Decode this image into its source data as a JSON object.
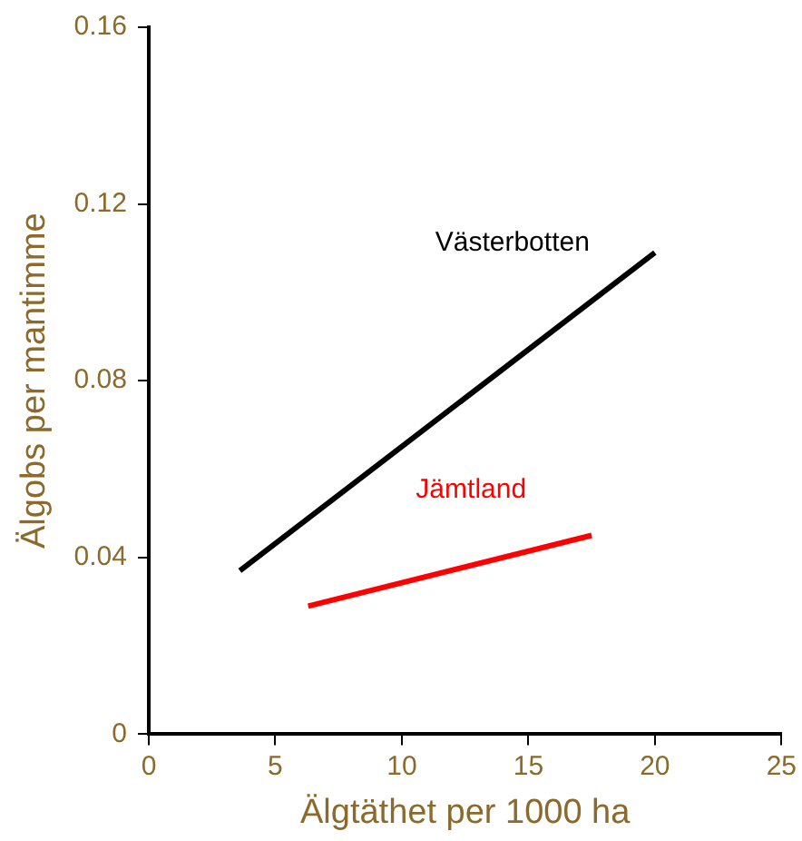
{
  "chart_data": {
    "type": "line",
    "xlabel": "Älgtäthet per 1000 ha",
    "ylabel": "Älgobs per mantimme",
    "xlim": [
      0,
      25
    ],
    "xticks": [
      0,
      5,
      10,
      15,
      20,
      25
    ],
    "ylim": [
      0,
      0.16
    ],
    "yticks": [
      0,
      0.04,
      0.08,
      0.12,
      0.16
    ],
    "grid": false,
    "legend": false,
    "marker": "none",
    "line_style": "solid",
    "series": [
      {
        "name": "Västerbotten",
        "color": "#000000",
        "x": [
          3.6,
          20
        ],
        "values": [
          0.037,
          0.109
        ]
      },
      {
        "name": "Jämtland",
        "color": "#ff0000",
        "x": [
          6.3,
          17.5
        ],
        "values": [
          0.029,
          0.045
        ]
      }
    ]
  }
}
